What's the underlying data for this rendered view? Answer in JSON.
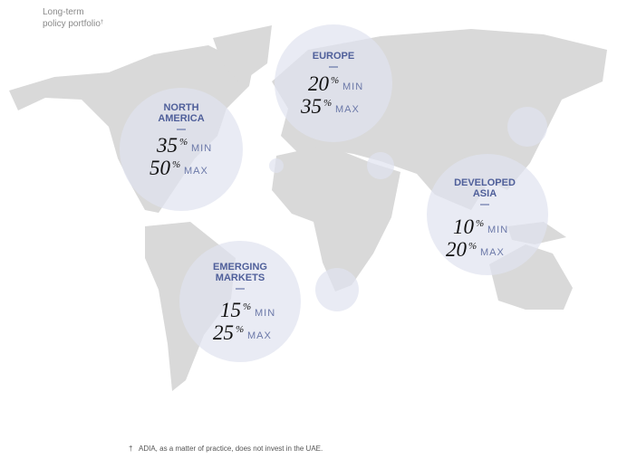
{
  "header": {
    "title_lines": [
      "Long-term",
      "policy portfolio"
    ],
    "title_mark": "†"
  },
  "unit": "%",
  "min_label": "MIN",
  "max_label": "MAX",
  "regions": [
    {
      "name_lines": [
        "NORTH",
        "AMERICA"
      ],
      "min": 35,
      "max": 50
    },
    {
      "name_lines": [
        "EUROPE"
      ],
      "min": 20,
      "max": 35
    },
    {
      "name_lines": [
        "DEVELOPED",
        "ASIA"
      ],
      "min": 10,
      "max": 20
    },
    {
      "name_lines": [
        "EMERGING",
        "MARKETS"
      ],
      "min": 15,
      "max": 25
    }
  ],
  "footnote": {
    "mark": "†",
    "text": "ADIA, as a matter of practice, does not invest in the UAE."
  }
}
